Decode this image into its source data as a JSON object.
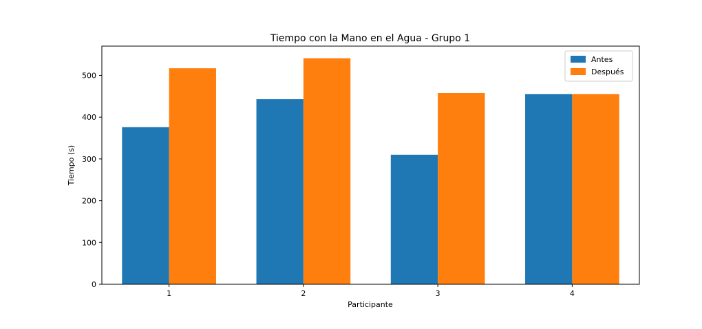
{
  "chart_data": {
    "type": "bar",
    "title": "Tiempo con la Mano en el Agua - Grupo 1",
    "xlabel": "Participante",
    "ylabel": "Tiempo (s)",
    "categories": [
      "1",
      "2",
      "3",
      "4"
    ],
    "series": [
      {
        "name": "Antes",
        "color": "#1f77b4",
        "values": [
          376,
          443,
          310,
          455
        ]
      },
      {
        "name": "Después",
        "color": "#ff7f0e",
        "values": [
          517,
          541,
          458,
          455
        ]
      }
    ],
    "ylim": [
      0,
      570
    ],
    "yticks": [
      0,
      100,
      200,
      300,
      400,
      500
    ],
    "grid": false,
    "legend_position": "top-right"
  }
}
